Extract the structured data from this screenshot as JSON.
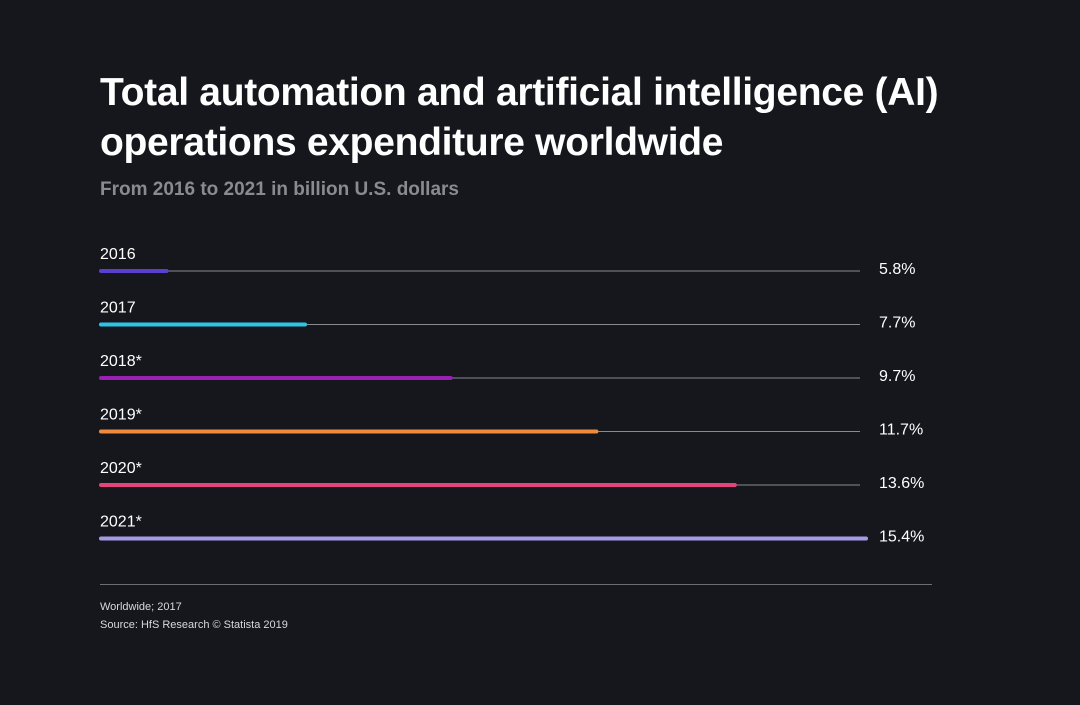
{
  "chart_data": {
    "type": "bar",
    "orientation": "horizontal",
    "title": "Total automation and artificial intelligence (AI) operations expenditure worldwide",
    "subtitle": "From 2016 to 2021 in billion U.S. dollars",
    "categories": [
      "2016",
      "2017",
      "2018*",
      "2019*",
      "2020*",
      "2021*"
    ],
    "values": [
      5.8,
      7.7,
      9.7,
      11.7,
      13.6,
      15.4
    ],
    "value_labels": [
      "5.8%",
      "7.7%",
      "9.7%",
      "11.7%",
      "13.6%",
      "15.4%"
    ],
    "bar_colors": [
      "#5b3fcf",
      "#2ec4e6",
      "#9b1fb5",
      "#f08a3c",
      "#e3457a",
      "#a69ae6"
    ],
    "track_color": "#8a8a92",
    "xlim": [
      4.9,
      15.4
    ],
    "grid": false,
    "legend": "none"
  },
  "footer": {
    "note": "Worldwide; 2017",
    "source": "Source: HfS Research © Statista 2019"
  }
}
